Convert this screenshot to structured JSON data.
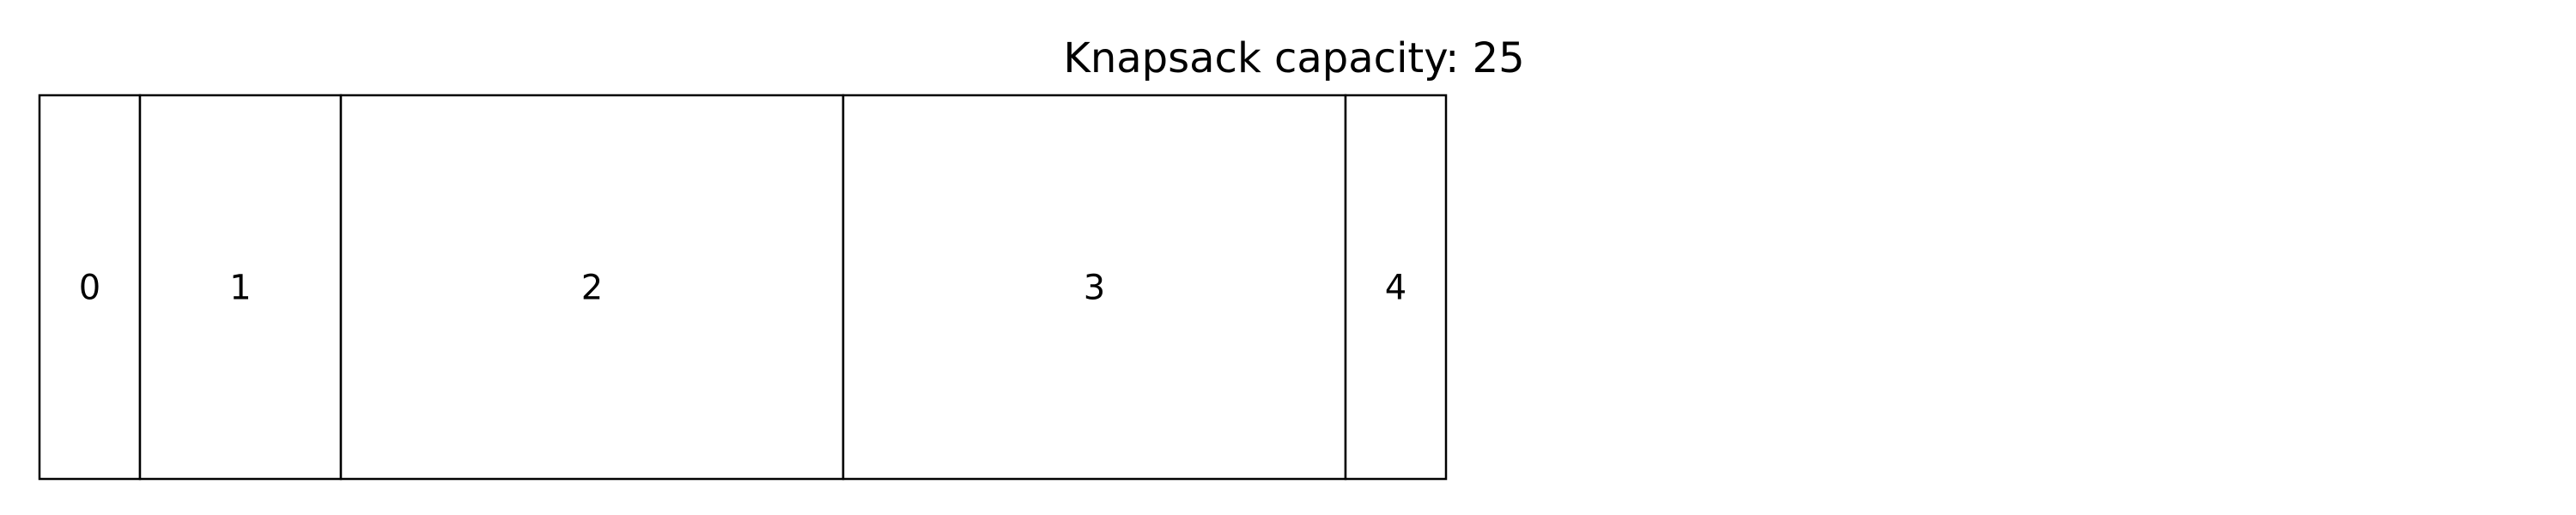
{
  "title": "Knapsack capacity: 25",
  "capacity": 25,
  "items": [
    {
      "label": "0",
      "size": 1
    },
    {
      "label": "1",
      "size": 2
    },
    {
      "label": "2",
      "size": 5
    },
    {
      "label": "3",
      "size": 5
    },
    {
      "label": "4",
      "size": 1
    }
  ]
}
